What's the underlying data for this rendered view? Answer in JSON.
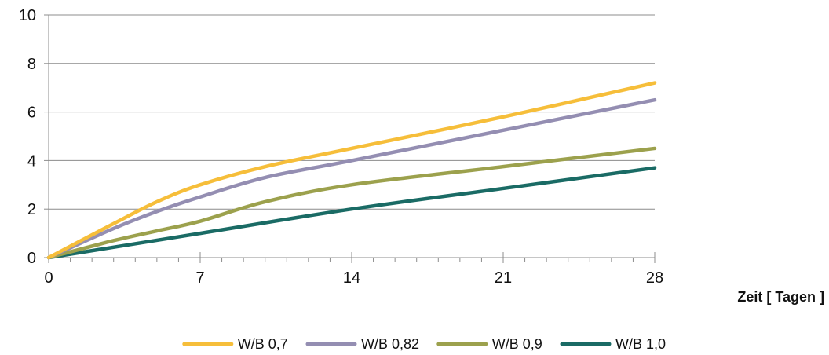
{
  "chart_data": {
    "type": "line",
    "xlabel": "Zeit [ Tagen ]",
    "ylabel": "",
    "xlim": [
      0,
      28
    ],
    "ylim": [
      0,
      10
    ],
    "x_ticks": [
      0,
      7,
      14,
      21,
      28
    ],
    "y_ticks": [
      0,
      2,
      4,
      6,
      8,
      10
    ],
    "x_minor_tick_step": 1,
    "grid": "horizontal",
    "legend_position": "bottom",
    "series": [
      {
        "name": "W/B 0,7",
        "color": "#F6BE3A",
        "x": [
          0,
          3,
          5,
          7,
          10,
          14,
          21,
          28
        ],
        "y": [
          0,
          1.4,
          2.3,
          3.0,
          3.75,
          4.5,
          5.8,
          7.2
        ]
      },
      {
        "name": "W/B 0,82",
        "color": "#948EB2",
        "x": [
          0,
          3,
          5,
          7,
          10,
          14,
          21,
          28
        ],
        "y": [
          0,
          1.2,
          1.9,
          2.5,
          3.3,
          4.0,
          5.25,
          6.5
        ]
      },
      {
        "name": "W/B 0,9",
        "color": "#9CA14D",
        "x": [
          0,
          3,
          5,
          7,
          10,
          14,
          21,
          28
        ],
        "y": [
          0,
          0.7,
          1.1,
          1.5,
          2.3,
          3.0,
          3.75,
          4.5
        ]
      },
      {
        "name": "W/B 1,0",
        "color": "#1A6B65",
        "x": [
          0,
          7,
          14,
          21,
          28
        ],
        "y": [
          0,
          1.0,
          2.0,
          2.85,
          3.7
        ]
      }
    ]
  }
}
